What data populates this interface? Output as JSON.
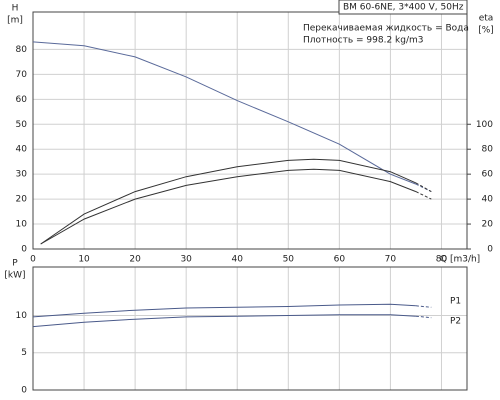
{
  "chart_data": [
    {
      "type": "line",
      "title": "BM 60-6NE, 3*400 V, 50Hz",
      "annotations": [
        "Перекачиваемая жидкость = Вода",
        "Плотность = 998.2 kg/m3"
      ],
      "ylabel": [
        "H",
        "[m]"
      ],
      "y2label": [
        "eta",
        "[%]"
      ],
      "xlabel": "Q [m3/h]",
      "xlim": [
        0,
        85
      ],
      "xticks": [
        0,
        10,
        20,
        30,
        40,
        50,
        60,
        70,
        80
      ],
      "ylim": [
        0,
        95
      ],
      "yticks": [
        0,
        10,
        20,
        30,
        40,
        50,
        60,
        70,
        80
      ],
      "y2lim": [
        0,
        190
      ],
      "y2ticks": [
        0,
        20,
        40,
        60,
        80,
        100
      ],
      "grid": true,
      "xtick_labels": true,
      "series": [
        {
          "color": "#5a6a9a",
          "dashed": false,
          "x": [
            0,
            10,
            20,
            30,
            40,
            50,
            60,
            70,
            75
          ],
          "values": [
            83,
            81.5,
            77,
            69,
            59.5,
            51,
            42,
            30,
            26
          ]
        },
        {
          "color": "#5a6a9a",
          "dashed": true,
          "x": [
            75,
            78
          ],
          "values": [
            26,
            23
          ]
        },
        {
          "color": "#333333",
          "dashed": false,
          "axis": "y2",
          "x": [
            1.5,
            10,
            20,
            30,
            40,
            50,
            55,
            60,
            70,
            75
          ],
          "values": [
            4,
            28,
            46,
            58,
            66,
            71,
            72,
            71,
            62,
            53
          ]
        },
        {
          "color": "#333333",
          "dashed": true,
          "axis": "y2",
          "x": [
            75,
            78
          ],
          "values": [
            53,
            46
          ]
        },
        {
          "color": "#333333",
          "dashed": false,
          "axis": "y2",
          "x": [
            1.5,
            10,
            20,
            30,
            40,
            50,
            55,
            60,
            70,
            75
          ],
          "values": [
            4,
            24,
            40,
            51,
            58,
            63,
            64,
            63,
            54,
            46
          ]
        },
        {
          "color": "#333333",
          "dashed": true,
          "axis": "y2",
          "x": [
            75,
            78
          ],
          "values": [
            46,
            40
          ]
        }
      ]
    },
    {
      "type": "line",
      "ylabel": [
        "P",
        "[kW]"
      ],
      "xlim": [
        0,
        85
      ],
      "xticks": [
        0,
        10,
        20,
        30,
        40,
        50,
        60,
        70,
        80
      ],
      "ylim": [
        0,
        16.5
      ],
      "yticks": [
        0,
        5,
        10
      ],
      "grid": true,
      "xtick_labels": false,
      "series": [
        {
          "name": "P1",
          "color": "#4a5a8a",
          "dashed": false,
          "x": [
            0,
            10,
            20,
            30,
            40,
            50,
            60,
            70,
            75
          ],
          "values": [
            9.8,
            10.3,
            10.7,
            11,
            11.1,
            11.2,
            11.4,
            11.5,
            11.3
          ]
        },
        {
          "color": "#4a5a8a",
          "dashed": true,
          "x": [
            75,
            78
          ],
          "values": [
            11.3,
            11.1
          ]
        },
        {
          "name": "P2",
          "color": "#4a5a8a",
          "dashed": false,
          "x": [
            0,
            10,
            20,
            30,
            40,
            50,
            60,
            70,
            75
          ],
          "values": [
            8.5,
            9.1,
            9.5,
            9.8,
            9.9,
            10,
            10.1,
            10.1,
            9.9
          ]
        },
        {
          "color": "#4a5a8a",
          "dashed": true,
          "x": [
            75,
            78
          ],
          "values": [
            9.9,
            9.7
          ]
        }
      ]
    }
  ]
}
